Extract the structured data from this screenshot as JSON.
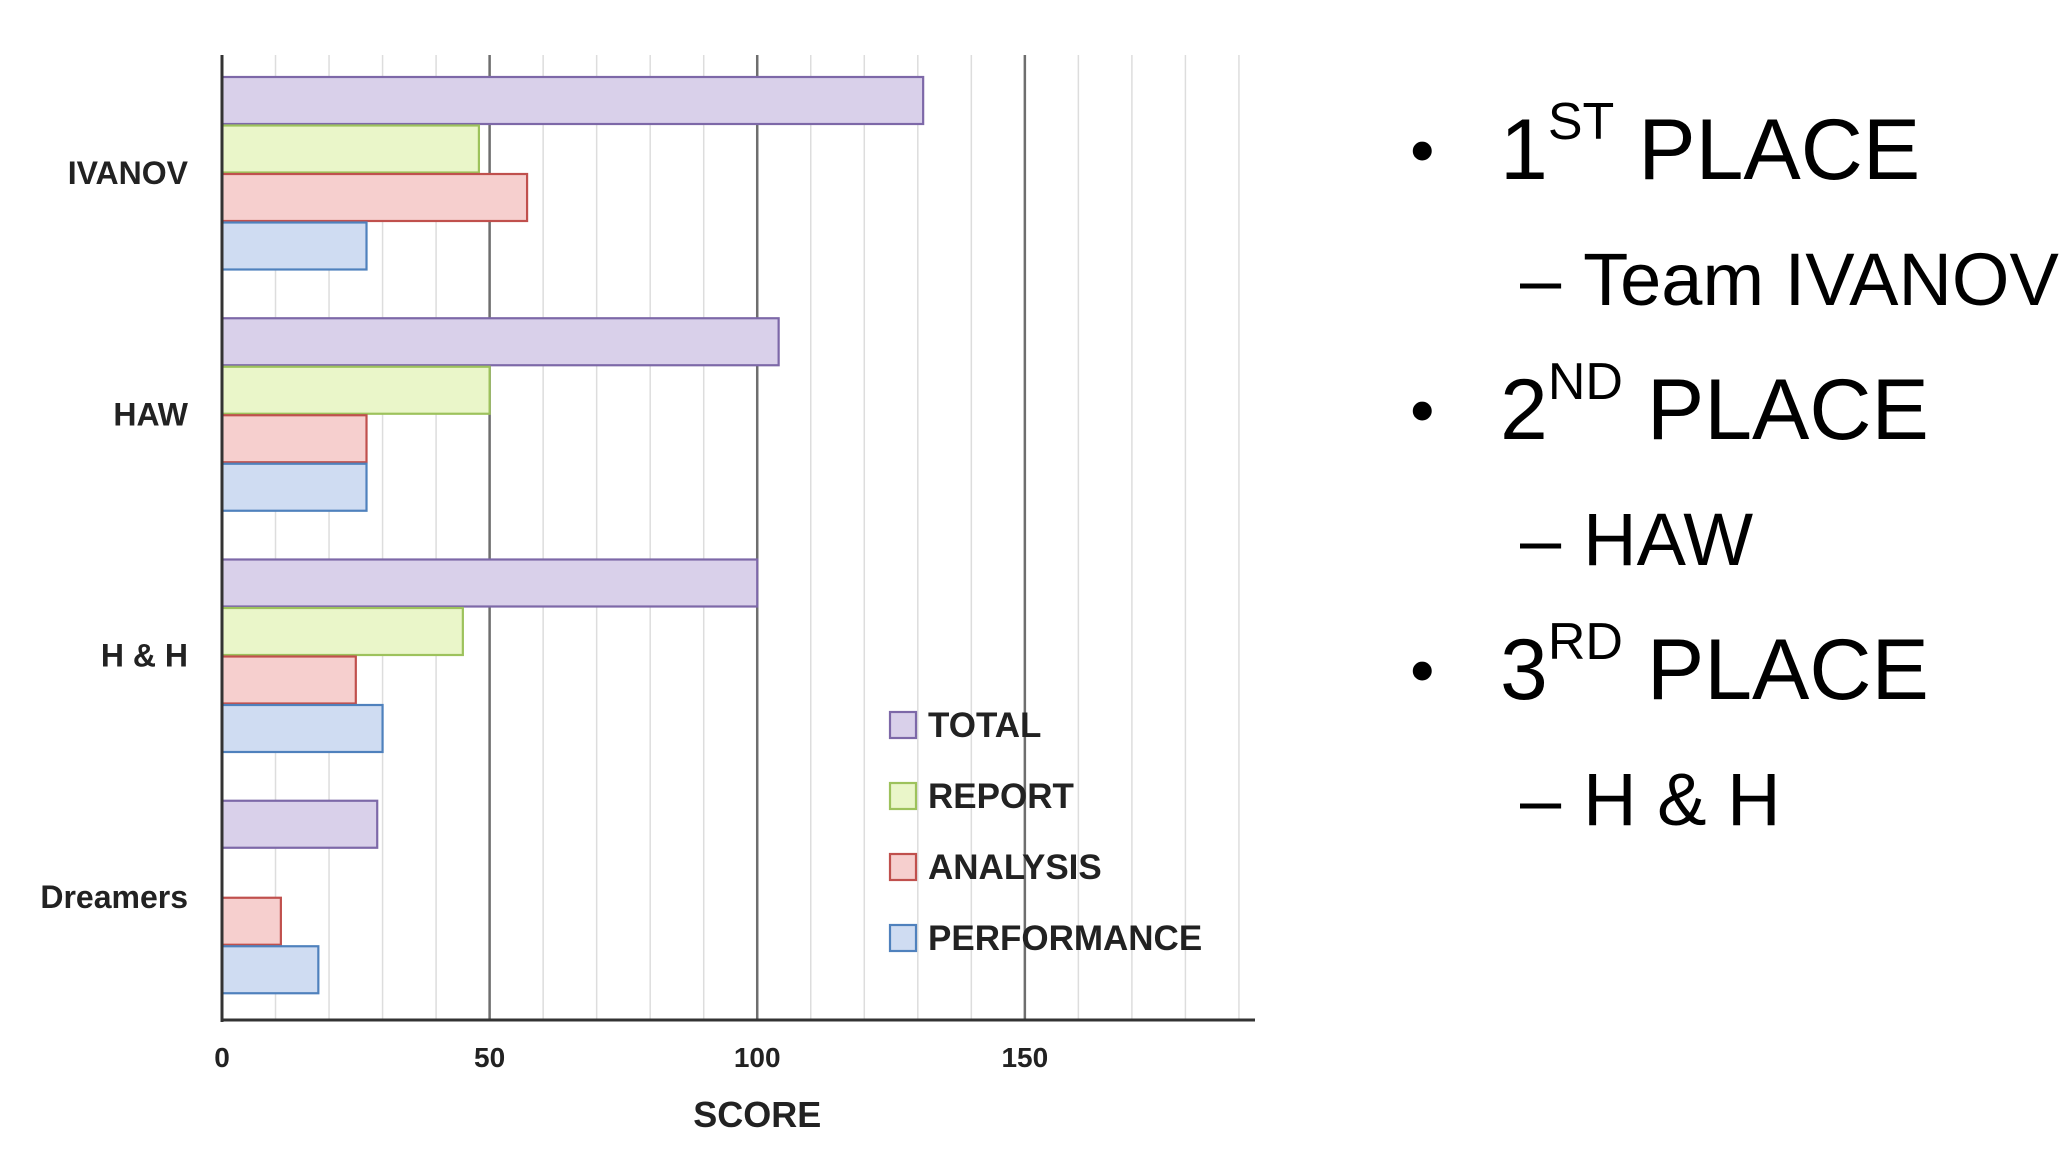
{
  "chart_data": {
    "type": "bar",
    "orientation": "horizontal",
    "categories": [
      "IVANOV",
      "HAW",
      "H & H",
      "Dreamers"
    ],
    "series": [
      {
        "name": "TOTAL",
        "values": [
          131,
          104,
          100,
          29
        ],
        "color": "#d9d0ea",
        "stroke": "#7d68a8"
      },
      {
        "name": "REPORT",
        "values": [
          48,
          50,
          45,
          0
        ],
        "color": "#eaf6c9",
        "stroke": "#9dc25c"
      },
      {
        "name": "ANALYSIS",
        "values": [
          57,
          27,
          25,
          11
        ],
        "color": "#f6cfce",
        "stroke": "#c0504d"
      },
      {
        "name": "PERFORMANCE",
        "values": [
          27,
          27,
          30,
          18
        ],
        "color": "#cfdcf2",
        "stroke": "#4f81bd"
      }
    ],
    "xlabel": "SCORE",
    "ylabel": "",
    "xlim": [
      0,
      193
    ],
    "xticks": [
      0,
      50,
      100,
      150
    ],
    "grid": true,
    "legend": "bottom-right"
  },
  "results": {
    "places": [
      {
        "num": "1",
        "suffix": "ST",
        "word": "PLACE",
        "team": "Team IVANOV"
      },
      {
        "num": "2",
        "suffix": "ND",
        "word": "PLACE",
        "team": "HAW"
      },
      {
        "num": "3",
        "suffix": "RD",
        "word": "PLACE",
        "team": "H & H"
      }
    ],
    "bullet": "•",
    "dash": "–"
  }
}
